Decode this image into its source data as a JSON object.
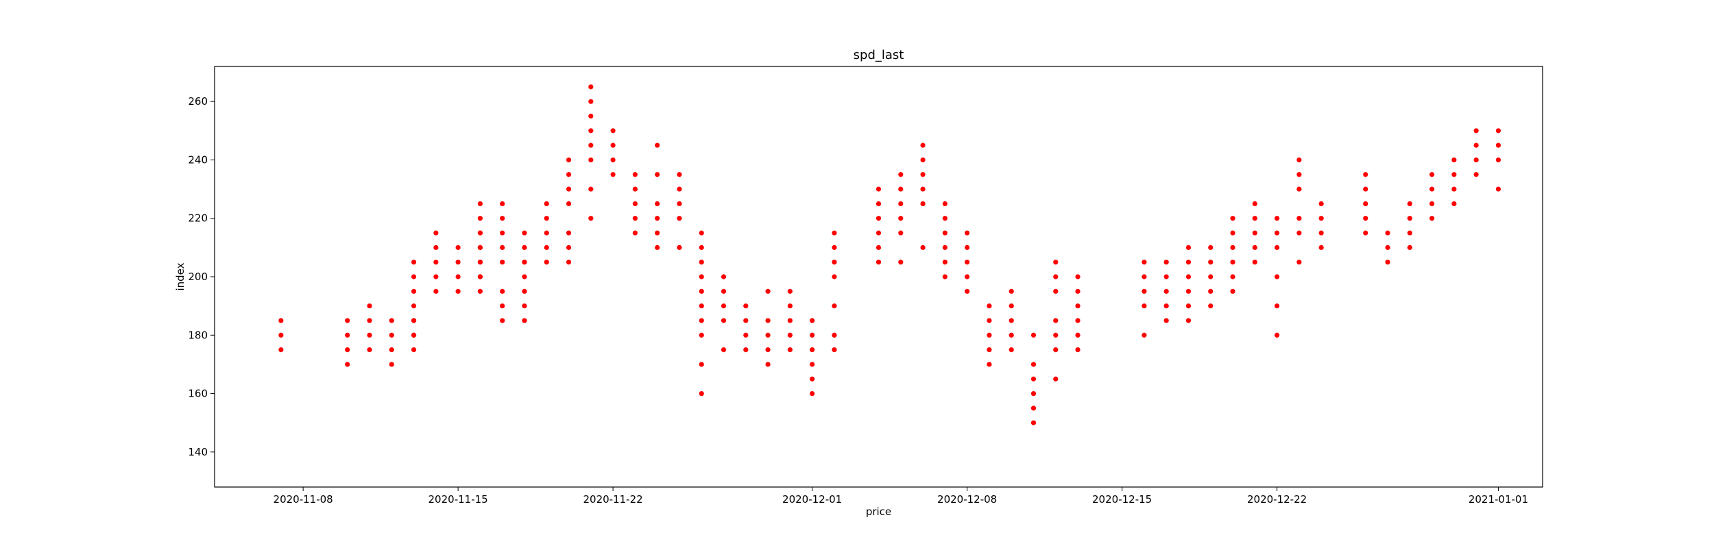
{
  "chart_data": {
    "type": "scatter",
    "title": "spd_last",
    "xlabel": "price",
    "ylabel": "index",
    "x_axis_type": "date",
    "xlim": [
      "2020-11-04",
      "2021-01-03"
    ],
    "ylim": [
      128,
      272
    ],
    "xticks": [
      "2020-11-08",
      "2020-11-15",
      "2020-11-22",
      "2020-12-01",
      "2020-12-08",
      "2020-12-15",
      "2020-12-22",
      "2021-01-01"
    ],
    "yticks": [
      140,
      160,
      180,
      200,
      220,
      240,
      260
    ],
    "grid": false,
    "marker_color": "#ff0000",
    "series": [
      {
        "points": [
          [
            "2020-11-07",
            175
          ],
          [
            "2020-11-07",
            180
          ],
          [
            "2020-11-07",
            185
          ],
          [
            "2020-11-10",
            170
          ],
          [
            "2020-11-10",
            175
          ],
          [
            "2020-11-10",
            180
          ],
          [
            "2020-11-10",
            185
          ],
          [
            "2020-11-11",
            175
          ],
          [
            "2020-11-11",
            180
          ],
          [
            "2020-11-11",
            185
          ],
          [
            "2020-11-11",
            190
          ],
          [
            "2020-11-12",
            170
          ],
          [
            "2020-11-12",
            175
          ],
          [
            "2020-11-12",
            180
          ],
          [
            "2020-11-12",
            185
          ],
          [
            "2020-11-13",
            175
          ],
          [
            "2020-11-13",
            180
          ],
          [
            "2020-11-13",
            185
          ],
          [
            "2020-11-13",
            190
          ],
          [
            "2020-11-13",
            180
          ],
          [
            "2020-11-13",
            185
          ],
          [
            "2020-11-13",
            195
          ],
          [
            "2020-11-13",
            200
          ],
          [
            "2020-11-13",
            205
          ],
          [
            "2020-11-14",
            195
          ],
          [
            "2020-11-14",
            200
          ],
          [
            "2020-11-14",
            205
          ],
          [
            "2020-11-14",
            210
          ],
          [
            "2020-11-14",
            215
          ],
          [
            "2020-11-15",
            195
          ],
          [
            "2020-11-15",
            200
          ],
          [
            "2020-11-15",
            205
          ],
          [
            "2020-11-15",
            210
          ],
          [
            "2020-11-16",
            200
          ],
          [
            "2020-11-16",
            205
          ],
          [
            "2020-11-16",
            210
          ],
          [
            "2020-11-16",
            215
          ],
          [
            "2020-11-16",
            220
          ],
          [
            "2020-11-16",
            225
          ],
          [
            "2020-11-17",
            205
          ],
          [
            "2020-11-17",
            210
          ],
          [
            "2020-11-17",
            215
          ],
          [
            "2020-11-17",
            220
          ],
          [
            "2020-11-17",
            225
          ],
          [
            "2020-11-18",
            205
          ],
          [
            "2020-11-18",
            210
          ],
          [
            "2020-11-18",
            215
          ],
          [
            "2020-11-16",
            195
          ],
          [
            "2020-11-16",
            200
          ],
          [
            "2020-11-16",
            205
          ],
          [
            "2020-11-16",
            210
          ],
          [
            "2020-11-16",
            215
          ],
          [
            "2020-11-17",
            185
          ],
          [
            "2020-11-17",
            190
          ],
          [
            "2020-11-17",
            195
          ],
          [
            "2020-11-18",
            185
          ],
          [
            "2020-11-18",
            190
          ],
          [
            "2020-11-18",
            195
          ],
          [
            "2020-11-18",
            200
          ],
          [
            "2020-11-18",
            205
          ],
          [
            "2020-11-19",
            205
          ],
          [
            "2020-11-19",
            210
          ],
          [
            "2020-11-19",
            215
          ],
          [
            "2020-11-19",
            220
          ],
          [
            "2020-11-19",
            225
          ],
          [
            "2020-11-20",
            205
          ],
          [
            "2020-11-20",
            210
          ],
          [
            "2020-11-20",
            215
          ],
          [
            "2020-11-20",
            225
          ],
          [
            "2020-11-20",
            230
          ],
          [
            "2020-11-20",
            235
          ],
          [
            "2020-11-20",
            240
          ],
          [
            "2020-11-21",
            220
          ],
          [
            "2020-11-21",
            230
          ],
          [
            "2020-11-21",
            240
          ],
          [
            "2020-11-21",
            245
          ],
          [
            "2020-11-21",
            250
          ],
          [
            "2020-11-21",
            255
          ],
          [
            "2020-11-21",
            260
          ],
          [
            "2020-11-21",
            265
          ],
          [
            "2020-11-22",
            235
          ],
          [
            "2020-11-22",
            240
          ],
          [
            "2020-11-22",
            245
          ],
          [
            "2020-11-22",
            250
          ],
          [
            "2020-11-23",
            215
          ],
          [
            "2020-11-23",
            220
          ],
          [
            "2020-11-23",
            225
          ],
          [
            "2020-11-23",
            230
          ],
          [
            "2020-11-23",
            235
          ],
          [
            "2020-11-24",
            210
          ],
          [
            "2020-11-24",
            215
          ],
          [
            "2020-11-24",
            220
          ],
          [
            "2020-11-24",
            225
          ],
          [
            "2020-11-24",
            235
          ],
          [
            "2020-11-24",
            245
          ],
          [
            "2020-11-25",
            210
          ],
          [
            "2020-11-25",
            220
          ],
          [
            "2020-11-25",
            225
          ],
          [
            "2020-11-25",
            230
          ],
          [
            "2020-11-25",
            235
          ],
          [
            "2020-11-26",
            200
          ],
          [
            "2020-11-26",
            205
          ],
          [
            "2020-11-26",
            210
          ],
          [
            "2020-11-26",
            215
          ],
          [
            "2020-11-26",
            160
          ],
          [
            "2020-11-26",
            170
          ],
          [
            "2020-11-26",
            180
          ],
          [
            "2020-11-26",
            185
          ],
          [
            "2020-11-26",
            190
          ],
          [
            "2020-11-26",
            195
          ],
          [
            "2020-11-27",
            175
          ],
          [
            "2020-11-27",
            185
          ],
          [
            "2020-11-27",
            190
          ],
          [
            "2020-11-27",
            195
          ],
          [
            "2020-11-27",
            200
          ],
          [
            "2020-11-28",
            175
          ],
          [
            "2020-11-28",
            180
          ],
          [
            "2020-11-28",
            185
          ],
          [
            "2020-11-28",
            190
          ],
          [
            "2020-11-29",
            170
          ],
          [
            "2020-11-29",
            175
          ],
          [
            "2020-11-29",
            180
          ],
          [
            "2020-11-29",
            185
          ],
          [
            "2020-11-29",
            195
          ],
          [
            "2020-11-30",
            175
          ],
          [
            "2020-11-30",
            180
          ],
          [
            "2020-11-30",
            185
          ],
          [
            "2020-11-30",
            190
          ],
          [
            "2020-11-30",
            195
          ],
          [
            "2020-12-01",
            160
          ],
          [
            "2020-12-01",
            165
          ],
          [
            "2020-12-01",
            170
          ],
          [
            "2020-12-01",
            175
          ],
          [
            "2020-12-01",
            180
          ],
          [
            "2020-12-01",
            185
          ],
          [
            "2020-12-02",
            175
          ],
          [
            "2020-12-02",
            180
          ],
          [
            "2020-12-02",
            190
          ],
          [
            "2020-12-02",
            200
          ],
          [
            "2020-12-02",
            205
          ],
          [
            "2020-12-02",
            210
          ],
          [
            "2020-12-02",
            215
          ],
          [
            "2020-12-04",
            205
          ],
          [
            "2020-12-04",
            210
          ],
          [
            "2020-12-04",
            215
          ],
          [
            "2020-12-04",
            220
          ],
          [
            "2020-12-04",
            225
          ],
          [
            "2020-12-04",
            230
          ],
          [
            "2020-12-05",
            205
          ],
          [
            "2020-12-05",
            215
          ],
          [
            "2020-12-05",
            220
          ],
          [
            "2020-12-05",
            225
          ],
          [
            "2020-12-05",
            230
          ],
          [
            "2020-12-05",
            235
          ],
          [
            "2020-12-06",
            210
          ],
          [
            "2020-12-06",
            225
          ],
          [
            "2020-12-06",
            230
          ],
          [
            "2020-12-06",
            235
          ],
          [
            "2020-12-06",
            240
          ],
          [
            "2020-12-06",
            245
          ],
          [
            "2020-12-07",
            200
          ],
          [
            "2020-12-07",
            205
          ],
          [
            "2020-12-07",
            210
          ],
          [
            "2020-12-07",
            215
          ],
          [
            "2020-12-07",
            220
          ],
          [
            "2020-12-07",
            225
          ],
          [
            "2020-12-08",
            195
          ],
          [
            "2020-12-08",
            200
          ],
          [
            "2020-12-08",
            205
          ],
          [
            "2020-12-08",
            210
          ],
          [
            "2020-12-08",
            215
          ],
          [
            "2020-12-09",
            170
          ],
          [
            "2020-12-09",
            175
          ],
          [
            "2020-12-09",
            180
          ],
          [
            "2020-12-09",
            185
          ],
          [
            "2020-12-09",
            190
          ],
          [
            "2020-12-10",
            175
          ],
          [
            "2020-12-10",
            180
          ],
          [
            "2020-12-10",
            185
          ],
          [
            "2020-12-10",
            190
          ],
          [
            "2020-12-10",
            195
          ],
          [
            "2020-12-11",
            150
          ],
          [
            "2020-12-11",
            155
          ],
          [
            "2020-12-11",
            160
          ],
          [
            "2020-12-11",
            165
          ],
          [
            "2020-12-11",
            170
          ],
          [
            "2020-12-11",
            180
          ],
          [
            "2020-12-12",
            165
          ],
          [
            "2020-12-12",
            175
          ],
          [
            "2020-12-12",
            180
          ],
          [
            "2020-12-12",
            185
          ],
          [
            "2020-12-12",
            195
          ],
          [
            "2020-12-12",
            200
          ],
          [
            "2020-12-12",
            205
          ],
          [
            "2020-12-13",
            175
          ],
          [
            "2020-12-13",
            180
          ],
          [
            "2020-12-13",
            185
          ],
          [
            "2020-12-13",
            190
          ],
          [
            "2020-12-13",
            195
          ],
          [
            "2020-12-13",
            200
          ],
          [
            "2020-12-16",
            180
          ],
          [
            "2020-12-16",
            190
          ],
          [
            "2020-12-16",
            195
          ],
          [
            "2020-12-16",
            200
          ],
          [
            "2020-12-16",
            205
          ],
          [
            "2020-12-17",
            185
          ],
          [
            "2020-12-17",
            190
          ],
          [
            "2020-12-17",
            195
          ],
          [
            "2020-12-17",
            200
          ],
          [
            "2020-12-17",
            205
          ],
          [
            "2020-12-18",
            185
          ],
          [
            "2020-12-18",
            190
          ],
          [
            "2020-12-18",
            195
          ],
          [
            "2020-12-18",
            200
          ],
          [
            "2020-12-18",
            205
          ],
          [
            "2020-12-18",
            210
          ],
          [
            "2020-12-19",
            190
          ],
          [
            "2020-12-19",
            195
          ],
          [
            "2020-12-19",
            200
          ],
          [
            "2020-12-19",
            205
          ],
          [
            "2020-12-19",
            210
          ],
          [
            "2020-12-20",
            195
          ],
          [
            "2020-12-20",
            200
          ],
          [
            "2020-12-20",
            205
          ],
          [
            "2020-12-20",
            210
          ],
          [
            "2020-12-20",
            215
          ],
          [
            "2020-12-20",
            220
          ],
          [
            "2020-12-21",
            205
          ],
          [
            "2020-12-21",
            210
          ],
          [
            "2020-12-21",
            215
          ],
          [
            "2020-12-21",
            220
          ],
          [
            "2020-12-21",
            225
          ],
          [
            "2020-12-22",
            180
          ],
          [
            "2020-12-22",
            190
          ],
          [
            "2020-12-22",
            200
          ],
          [
            "2020-12-22",
            210
          ],
          [
            "2020-12-22",
            215
          ],
          [
            "2020-12-22",
            220
          ],
          [
            "2020-12-23",
            205
          ],
          [
            "2020-12-23",
            215
          ],
          [
            "2020-12-23",
            220
          ],
          [
            "2020-12-23",
            230
          ],
          [
            "2020-12-23",
            235
          ],
          [
            "2020-12-23",
            240
          ],
          [
            "2020-12-24",
            210
          ],
          [
            "2020-12-24",
            215
          ],
          [
            "2020-12-24",
            220
          ],
          [
            "2020-12-24",
            225
          ],
          [
            "2020-12-26",
            215
          ],
          [
            "2020-12-26",
            220
          ],
          [
            "2020-12-26",
            225
          ],
          [
            "2020-12-26",
            230
          ],
          [
            "2020-12-26",
            235
          ],
          [
            "2020-12-27",
            205
          ],
          [
            "2020-12-27",
            210
          ],
          [
            "2020-12-27",
            215
          ],
          [
            "2020-12-28",
            210
          ],
          [
            "2020-12-28",
            215
          ],
          [
            "2020-12-28",
            220
          ],
          [
            "2020-12-28",
            225
          ],
          [
            "2020-12-29",
            220
          ],
          [
            "2020-12-29",
            225
          ],
          [
            "2020-12-29",
            230
          ],
          [
            "2020-12-29",
            235
          ],
          [
            "2020-12-30",
            225
          ],
          [
            "2020-12-30",
            230
          ],
          [
            "2020-12-30",
            235
          ],
          [
            "2020-12-30",
            240
          ],
          [
            "2020-12-31",
            235
          ],
          [
            "2020-12-31",
            240
          ],
          [
            "2020-12-31",
            245
          ],
          [
            "2020-12-31",
            250
          ],
          [
            "2021-01-01",
            230
          ],
          [
            "2021-01-01",
            240
          ],
          [
            "2021-01-01",
            245
          ],
          [
            "2021-01-01",
            250
          ]
        ]
      }
    ]
  }
}
